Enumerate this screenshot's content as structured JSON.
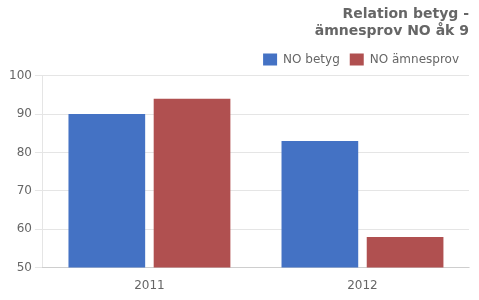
{
  "chart_data": {
    "type": "bar",
    "title": "Relation betyg -\nämnesprov NO åk 9",
    "categories": [
      "2011",
      "2012"
    ],
    "series": [
      {
        "name": "NO betyg",
        "color": "#4472C4",
        "values": [
          90,
          83
        ]
      },
      {
        "name": "NO ämnesprov",
        "color": "#B05050",
        "values": [
          94,
          58
        ]
      }
    ],
    "ylim": [
      50,
      100
    ],
    "yticks": [
      50,
      60,
      70,
      80,
      90,
      100
    ],
    "grid": true,
    "legend": "upper right"
  }
}
